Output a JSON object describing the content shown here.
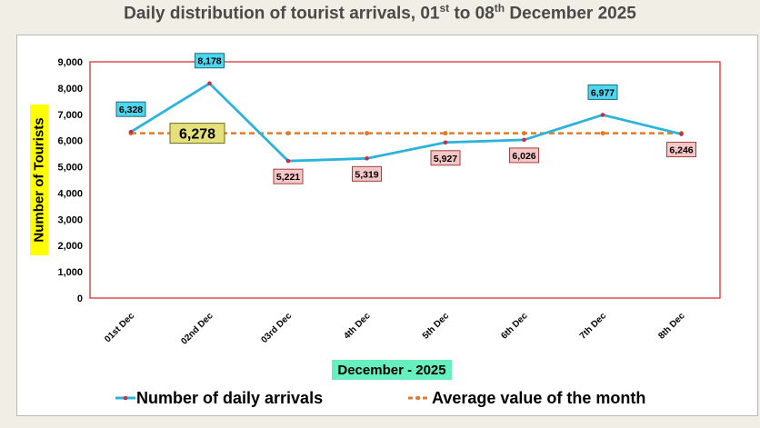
{
  "title": {
    "prefix": "Daily distribution of tourist arrivals, 01",
    "sup1": "st",
    "middle": " to 08",
    "sup2": "th",
    "suffix": " December 2025"
  },
  "colors": {
    "series_line": "#2bb3d9",
    "series_marker": "#c0304a",
    "average_line": "#e07b2a",
    "plot_border": "#d42020",
    "cyan_label_bg": "#4fd6ef",
    "pink_label_bg": "#f7c6c6",
    "avg_label_bg": "#e6e07a",
    "ylabel_bg": "#ffff00",
    "xlabel_bg": "#66f0c0"
  },
  "chart_data": {
    "type": "line",
    "categories": [
      "01st Dec",
      "02nd Dec",
      "03rd Dec",
      "4th Dec",
      "5th Dec",
      "6th Dec",
      "7th Dec",
      "8th Dec"
    ],
    "series": [
      {
        "name": "Number of daily arrivals",
        "values": [
          6328,
          8178,
          5221,
          5319,
          5927,
          6026,
          6977,
          6246
        ],
        "labels": [
          "6,328",
          "8,178",
          "5,221",
          "5,319",
          "5,927",
          "6,026",
          "6,977",
          "6,246"
        ],
        "label_style": [
          "above",
          "above",
          "below",
          "below",
          "below",
          "below",
          "above",
          "below"
        ]
      },
      {
        "name": "Average value of the month",
        "values": [
          6278,
          6278,
          6278,
          6278,
          6278,
          6278,
          6278,
          6278
        ],
        "label": "6,278"
      }
    ],
    "xlabel": "December - 2025",
    "ylabel": "Number of Tourists",
    "ylim": [
      0,
      9000
    ],
    "yticks": [
      0,
      1000,
      2000,
      3000,
      4000,
      5000,
      6000,
      7000,
      8000,
      9000
    ],
    "ytick_labels": [
      "0",
      "1,000",
      "2,000",
      "3,000",
      "4,000",
      "5,000",
      "6,000",
      "7,000",
      "8,000",
      "9,000"
    ],
    "grid": false,
    "legend": "bottom"
  }
}
